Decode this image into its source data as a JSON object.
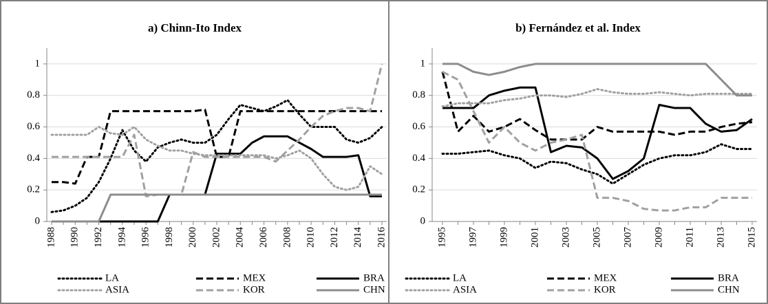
{
  "chart_data": [
    {
      "type": "line",
      "title": "a) Chinn-Ito Index",
      "categories": [
        "1988",
        null,
        "1990",
        null,
        "1992",
        null,
        "1994",
        null,
        "1996",
        null,
        "1998",
        null,
        "2000",
        null,
        "2002",
        null,
        "2004",
        null,
        "2006",
        null,
        "2008",
        null,
        "2010",
        null,
        "2012",
        null,
        "2014",
        null,
        "2016"
      ],
      "ylim": [
        0,
        1.1
      ],
      "yticks": [
        0,
        0.2,
        0.4,
        0.6,
        0.8,
        1
      ],
      "grid": true,
      "series": [
        {
          "name": "LA",
          "color": "#000000",
          "dash": "dotted",
          "values": [
            0.06,
            0.07,
            0.1,
            0.15,
            0.25,
            0.4,
            0.58,
            0.45,
            0.38,
            0.47,
            0.5,
            0.52,
            0.5,
            0.5,
            0.55,
            0.65,
            0.74,
            0.72,
            0.7,
            0.73,
            0.77,
            0.68,
            0.6,
            0.6,
            0.6,
            0.52,
            0.5,
            0.53,
            0.6
          ]
        },
        {
          "name": "MEX",
          "color": "#000000",
          "dash": "dashed",
          "values": [
            0.25,
            0.25,
            0.24,
            0.41,
            0.41,
            0.7,
            0.7,
            0.7,
            0.7,
            0.7,
            0.7,
            0.7,
            0.7,
            0.71,
            0.41,
            0.41,
            0.7,
            0.7,
            0.7,
            0.7,
            0.7,
            0.7,
            0.7,
            0.7,
            0.7,
            0.7,
            0.7,
            0.7,
            0.7
          ]
        },
        {
          "name": "BRA",
          "color": "#000000",
          "dash": "solid",
          "values": [
            0,
            0,
            0,
            0,
            0,
            0,
            0,
            0,
            0,
            0,
            0.17,
            0.17,
            0.17,
            0.17,
            0.43,
            0.43,
            0.43,
            0.5,
            0.54,
            0.54,
            0.54,
            0.5,
            0.46,
            0.41,
            0.41,
            0.41,
            0.42,
            0.16,
            0.16
          ]
        },
        {
          "name": "ASIA",
          "color": "#a0a0a0",
          "dash": "dotted",
          "values": [
            0.55,
            0.55,
            0.55,
            0.55,
            0.6,
            0.56,
            0.55,
            0.6,
            0.52,
            0.48,
            0.45,
            0.45,
            0.43,
            0.42,
            0.42,
            0.42,
            0.42,
            0.42,
            0.42,
            0.4,
            0.42,
            0.45,
            0.4,
            0.3,
            0.22,
            0.2,
            0.22,
            0.35,
            0.3
          ]
        },
        {
          "name": "KOR",
          "color": "#a0a0a0",
          "dash": "dashed",
          "values": [
            0.41,
            0.41,
            0.41,
            0.41,
            0.41,
            0.41,
            0.41,
            0.55,
            0.16,
            0.17,
            0.17,
            0.17,
            0.44,
            0.41,
            0.41,
            0.41,
            0.41,
            0.41,
            0.41,
            0.38,
            0.45,
            0.52,
            0.6,
            0.67,
            0.7,
            0.72,
            0.72,
            0.7,
            1
          ]
        },
        {
          "name": "CHN",
          "color": "#8c8c8c",
          "dash": "solid",
          "values": [
            0,
            0,
            0,
            0,
            0,
            0.17,
            0.17,
            0.17,
            0.17,
            0.17,
            0.17,
            0.17,
            0.17,
            0.17,
            0.17,
            0.17,
            0.17,
            0.17,
            0.17,
            0.17,
            0.17,
            0.17,
            0.17,
            0.17,
            0.17,
            0.17,
            0.17,
            0.17,
            0.17
          ]
        }
      ]
    },
    {
      "type": "line",
      "title": "b) Fernández et al. Index",
      "categories": [
        "1995",
        null,
        "1997",
        null,
        "1999",
        null,
        "2001",
        null,
        "2003",
        null,
        "2005",
        null,
        "2007",
        null,
        "2009",
        null,
        "2011",
        null,
        "2013",
        null,
        "2015"
      ],
      "ylim": [
        0,
        1.1
      ],
      "yticks": [
        0,
        0.2,
        0.4,
        0.6,
        0.8,
        1
      ],
      "grid": true,
      "series": [
        {
          "name": "LA",
          "color": "#000000",
          "dash": "dotted",
          "values": [
            0.43,
            0.43,
            0.44,
            0.45,
            0.42,
            0.4,
            0.34,
            0.38,
            0.37,
            0.33,
            0.3,
            0.24,
            0.3,
            0.36,
            0.4,
            0.42,
            0.42,
            0.44,
            0.49,
            0.46,
            0.46
          ]
        },
        {
          "name": "MEX",
          "color": "#000000",
          "dash": "dashed",
          "values": [
            0.95,
            0.57,
            0.67,
            0.57,
            0.6,
            0.65,
            0.58,
            0.52,
            0.52,
            0.52,
            0.6,
            0.57,
            0.57,
            0.57,
            0.57,
            0.55,
            0.57,
            0.57,
            0.6,
            0.62,
            0.63
          ]
        },
        {
          "name": "BRA",
          "color": "#000000",
          "dash": "solid",
          "values": [
            0.72,
            0.72,
            0.72,
            0.8,
            0.83,
            0.85,
            0.85,
            0.44,
            0.48,
            0.47,
            0.4,
            0.27,
            0.32,
            0.4,
            0.74,
            0.72,
            0.72,
            0.62,
            0.57,
            0.58,
            0.65
          ]
        },
        {
          "name": "ASIA",
          "color": "#a0a0a0",
          "dash": "dotted",
          "values": [
            0.73,
            0.75,
            0.75,
            0.75,
            0.77,
            0.78,
            0.8,
            0.8,
            0.79,
            0.81,
            0.84,
            0.82,
            0.81,
            0.81,
            0.82,
            0.81,
            0.8,
            0.81,
            0.81,
            0.81,
            0.81
          ]
        },
        {
          "name": "KOR",
          "color": "#a0a0a0",
          "dash": "dashed",
          "values": [
            0.95,
            0.9,
            0.7,
            0.5,
            0.6,
            0.5,
            0.45,
            0.5,
            0.52,
            0.55,
            0.15,
            0.15,
            0.13,
            0.08,
            0.07,
            0.07,
            0.09,
            0.09,
            0.15,
            0.15,
            0.15
          ]
        },
        {
          "name": "CHN",
          "color": "#8c8c8c",
          "dash": "solid",
          "values": [
            1,
            1,
            0.95,
            0.93,
            0.95,
            0.98,
            1,
            1,
            1,
            1,
            1,
            1,
            1,
            1,
            1,
            1,
            1,
            1,
            0.9,
            0.8,
            0.8
          ]
        }
      ]
    }
  ]
}
